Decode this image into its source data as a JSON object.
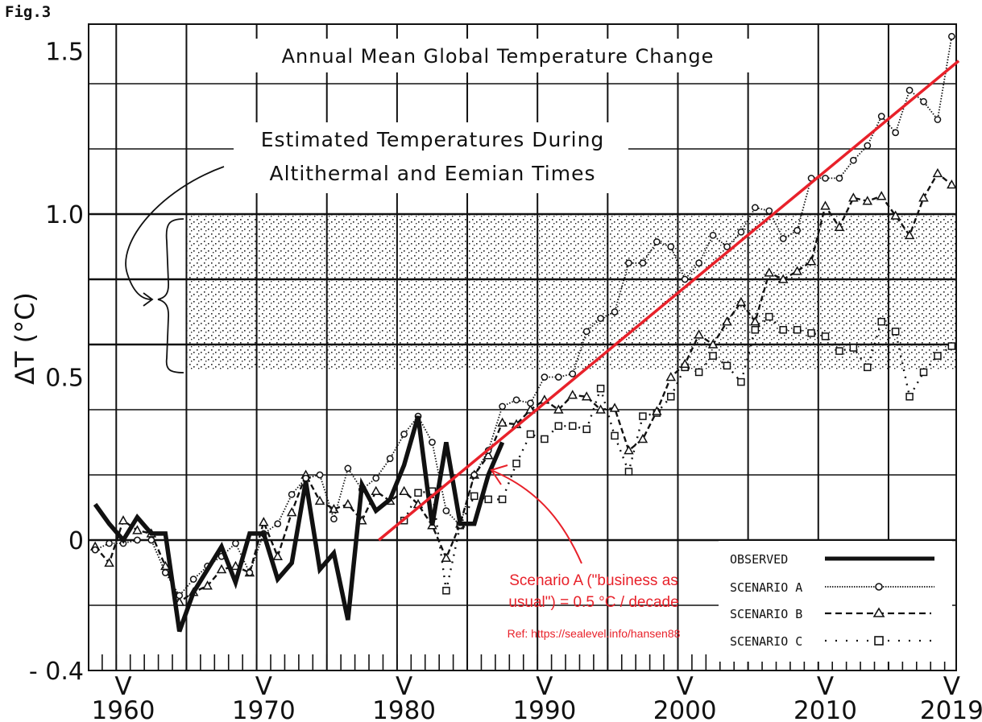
{
  "figure_label": "Fig.3",
  "chart_data": {
    "type": "line",
    "title": "Annual Mean Global Temperature Change",
    "xlabel": "",
    "ylabel": "ΔT (°C)",
    "xlim": [
      1957,
      2019.4
    ],
    "ylim": [
      -0.4,
      1.6
    ],
    "x_ticks": [
      {
        "value": 1960,
        "label": "1960"
      },
      {
        "value": 1970,
        "label": "1970"
      },
      {
        "value": 1980,
        "label": "1980"
      },
      {
        "value": 1990,
        "label": "1990"
      },
      {
        "value": 2000,
        "label": "2000"
      },
      {
        "value": 2010,
        "label": "2010"
      },
      {
        "value": 2019,
        "label": "2019"
      }
    ],
    "x_tick_marker": "V",
    "y_ticks": [
      {
        "value": 1.5,
        "label": "1.5"
      },
      {
        "value": 1.0,
        "label": "1.0"
      },
      {
        "value": 0.5,
        "label": "0.5"
      },
      {
        "value": 0,
        "label": "0"
      },
      {
        "value": -0.4,
        "label": "- 0.4"
      }
    ],
    "grid": true,
    "shaded_band": {
      "label_lines": [
        "Estimated Temperatures During",
        "Altithermal and Eemian Times"
      ],
      "x_start": 1964.5,
      "y_range": [
        0.52,
        1.0
      ]
    },
    "legend": {
      "placement": "bottom-right",
      "entries": [
        {
          "name": "OBSERVED",
          "style": "thick-solid",
          "marker": "none"
        },
        {
          "name": "SCENARIO A",
          "style": "dotted",
          "marker": "circle"
        },
        {
          "name": "SCENARIO B",
          "style": "dashed",
          "marker": "triangle"
        },
        {
          "name": "SCENARIO C",
          "style": "sparse-dotted",
          "marker": "square"
        }
      ]
    },
    "series": [
      {
        "name": "OBSERVED",
        "x": [
          1958,
          1959,
          1960,
          1961,
          1962,
          1963,
          1964,
          1965,
          1966,
          1967,
          1968,
          1969,
          1970,
          1971,
          1972,
          1973,
          1974,
          1975,
          1976,
          1977,
          1978,
          1979,
          1980,
          1981,
          1982,
          1983,
          1984,
          1985,
          1986,
          1987
        ],
        "values": [
          0.11,
          0.05,
          0.0,
          0.07,
          0.02,
          0.02,
          -0.28,
          -0.16,
          -0.09,
          -0.02,
          -0.13,
          0.02,
          0.02,
          -0.12,
          -0.07,
          0.18,
          -0.09,
          -0.04,
          -0.245,
          0.17,
          0.09,
          0.125,
          0.23,
          0.38,
          0.045,
          0.3,
          0.05,
          0.05,
          0.2,
          0.3
        ]
      },
      {
        "name": "SCENARIO A",
        "x": [
          1958,
          1959,
          1960,
          1961,
          1962,
          1963,
          1964,
          1965,
          1966,
          1967,
          1968,
          1969,
          1970,
          1971,
          1972,
          1973,
          1974,
          1975,
          1976,
          1977,
          1978,
          1979,
          1980,
          1981,
          1982,
          1983,
          1984,
          1985,
          1986,
          1987,
          1988,
          1989,
          1990,
          1991,
          1992,
          1993,
          1994,
          1995,
          1996,
          1997,
          1998,
          1999,
          2000,
          2001,
          2002,
          2003,
          2004,
          2005,
          2006,
          2007,
          2008,
          2009,
          2010,
          2011,
          2012,
          2013,
          2014,
          2015,
          2016,
          2017,
          2018,
          2019
        ],
        "values": [
          -0.03,
          -0.01,
          -0.01,
          0.0,
          0.0,
          -0.1,
          -0.17,
          -0.12,
          -0.08,
          -0.05,
          -0.01,
          -0.1,
          0.02,
          0.05,
          0.14,
          0.19,
          0.2,
          0.065,
          0.22,
          0.155,
          0.19,
          0.25,
          0.325,
          0.38,
          0.3,
          0.09,
          0.045,
          0.2,
          0.275,
          0.41,
          0.43,
          0.42,
          0.5,
          0.5,
          0.51,
          0.64,
          0.68,
          0.7,
          0.85,
          0.85,
          0.915,
          0.9,
          0.8,
          0.85,
          0.935,
          0.9,
          0.945,
          1.02,
          1.01,
          0.925,
          0.95,
          1.11,
          1.11,
          1.11,
          1.165,
          1.21,
          1.3,
          1.25,
          1.38,
          1.345,
          1.29,
          1.545
        ]
      },
      {
        "name": "SCENARIO B",
        "x": [
          1958,
          1959,
          1960,
          1961,
          1962,
          1963,
          1964,
          1965,
          1966,
          1967,
          1968,
          1969,
          1970,
          1971,
          1972,
          1973,
          1974,
          1975,
          1976,
          1977,
          1978,
          1979,
          1980,
          1981,
          1982,
          1983,
          1984,
          1985,
          1986,
          1987,
          1988,
          1989,
          1990,
          1991,
          1992,
          1993,
          1994,
          1995,
          1996,
          1997,
          1998,
          1999,
          2000,
          2001,
          2002,
          2003,
          2004,
          2005,
          2006,
          2007,
          2008,
          2009,
          2010,
          2011,
          2012,
          2013,
          2014,
          2015,
          2016,
          2017,
          2018,
          2019
        ],
        "values": [
          -0.02,
          -0.07,
          0.06,
          0.03,
          0.02,
          -0.08,
          -0.19,
          -0.16,
          -0.14,
          -0.09,
          -0.08,
          -0.1,
          0.055,
          -0.05,
          0.085,
          0.2,
          0.12,
          0.095,
          0.11,
          0.06,
          0.15,
          0.12,
          0.15,
          0.11,
          0.045,
          -0.055,
          0.05,
          0.2,
          0.26,
          0.36,
          0.355,
          0.4,
          0.43,
          0.4,
          0.445,
          0.44,
          0.4,
          0.405,
          0.275,
          0.31,
          0.395,
          0.5,
          0.54,
          0.63,
          0.6,
          0.67,
          0.73,
          0.67,
          0.82,
          0.8,
          0.825,
          0.855,
          1.025,
          0.96,
          1.05,
          1.04,
          1.055,
          0.995,
          0.935,
          1.05,
          1.125,
          1.09
        ]
      },
      {
        "name": "SCENARIO C",
        "x": [
          1980,
          1981,
          1982,
          1983,
          1984,
          1985,
          1986,
          1987,
          1988,
          1989,
          1990,
          1991,
          1992,
          1993,
          1994,
          1995,
          1996,
          1997,
          1998,
          1999,
          2000,
          2001,
          2002,
          2003,
          2004,
          2005,
          2006,
          2007,
          2008,
          2009,
          2010,
          2011,
          2012,
          2013,
          2014,
          2015,
          2016,
          2017,
          2018,
          2019
        ],
        "values": [
          0.06,
          0.145,
          0.15,
          -0.155,
          0.045,
          0.135,
          0.125,
          0.125,
          0.235,
          0.325,
          0.31,
          0.35,
          0.35,
          0.34,
          0.465,
          0.32,
          0.21,
          0.38,
          0.39,
          0.44,
          0.53,
          0.515,
          0.565,
          0.535,
          0.485,
          0.645,
          0.685,
          0.645,
          0.645,
          0.635,
          0.625,
          0.58,
          0.59,
          0.53,
          0.67,
          0.64,
          0.44,
          0.515,
          0.565,
          0.595
        ]
      }
    ],
    "trend_line": {
      "name": "Scenario A trend",
      "color": "#e8212a",
      "start": {
        "x": 1978.2,
        "y": 0.0
      },
      "end": {
        "x": 2019.5,
        "y": 1.47
      }
    },
    "annotations": [
      {
        "text_lines": [
          "Scenario A (\"business as",
          "usual\") = 0.5 °C / decade"
        ],
        "color": "#e8212a",
        "points_to": {
          "x": 1986,
          "y": 0.27
        }
      },
      {
        "text": "Ref: https://sealevel.info/hansen88",
        "color": "#e8212a"
      }
    ]
  }
}
